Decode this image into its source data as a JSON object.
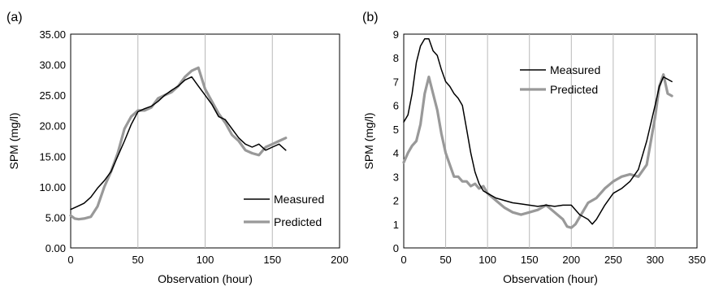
{
  "chart_data": [
    {
      "panel_label": "(a)",
      "type": "line",
      "xlabel": "Observation (hour)",
      "ylabel": "SPM (mg/l)",
      "xlim": [
        0,
        200
      ],
      "ylim": [
        0,
        35
      ],
      "x_ticks": [
        "0",
        "50",
        "100",
        "150",
        "200"
      ],
      "y_ticks": [
        "0.00",
        "5.00",
        "10.00",
        "15.00",
        "20.00",
        "25.00",
        "30.00",
        "35.00"
      ],
      "grid": "vertical",
      "legend_position": "bottom-right",
      "series": [
        {
          "name": "Measured",
          "color": "#000000",
          "x": [
            0,
            5,
            10,
            15,
            20,
            25,
            30,
            35,
            40,
            45,
            50,
            55,
            60,
            65,
            70,
            75,
            80,
            85,
            90,
            95,
            100,
            105,
            110,
            115,
            120,
            125,
            130,
            135,
            140,
            145,
            150,
            155,
            160
          ],
          "y": [
            6.3,
            6.8,
            7.3,
            8.3,
            9.8,
            11.0,
            12.5,
            15.0,
            17.5,
            20.2,
            22.3,
            22.8,
            23.2,
            24.0,
            25.0,
            25.8,
            26.5,
            27.5,
            28.0,
            26.5,
            25.0,
            23.5,
            21.5,
            21.0,
            19.5,
            18.0,
            17.0,
            16.5,
            17.0,
            16.0,
            16.5,
            17.0,
            16.0
          ]
        },
        {
          "name": "Predicted",
          "color": "#999999",
          "x": [
            0,
            3,
            6,
            10,
            15,
            20,
            25,
            30,
            35,
            40,
            45,
            50,
            55,
            60,
            65,
            70,
            75,
            80,
            85,
            90,
            95,
            100,
            105,
            110,
            115,
            120,
            125,
            130,
            135,
            140,
            145,
            150,
            155,
            160
          ],
          "y": [
            5.3,
            4.8,
            4.7,
            4.8,
            5.1,
            6.8,
            10.0,
            12.5,
            15.5,
            19.5,
            21.5,
            22.5,
            22.5,
            23.0,
            24.5,
            25.0,
            25.5,
            26.5,
            28.0,
            29.0,
            29.5,
            26.0,
            24.0,
            22.0,
            20.5,
            18.5,
            17.5,
            16.0,
            15.5,
            15.2,
            16.5,
            17.0,
            17.5,
            18.0
          ]
        }
      ]
    },
    {
      "panel_label": "(b)",
      "type": "line",
      "xlabel": "Observation (hour)",
      "ylabel": "SPM (mg/l)",
      "xlim": [
        0,
        350
      ],
      "ylim": [
        0,
        9
      ],
      "x_ticks": [
        "0",
        "50",
        "100",
        "150",
        "200",
        "250",
        "300",
        "350"
      ],
      "y_ticks": [
        "0",
        "1",
        "2",
        "3",
        "4",
        "5",
        "6",
        "7",
        "8",
        "9"
      ],
      "grid": "vertical",
      "legend_position": "top-center",
      "series": [
        {
          "name": "Measured",
          "color": "#000000",
          "x": [
            0,
            5,
            10,
            15,
            20,
            25,
            30,
            35,
            40,
            45,
            50,
            55,
            60,
            65,
            70,
            75,
            80,
            85,
            90,
            95,
            100,
            110,
            120,
            130,
            140,
            150,
            160,
            170,
            180,
            190,
            200,
            205,
            210,
            215,
            220,
            225,
            230,
            240,
            250,
            260,
            270,
            280,
            290,
            300,
            305,
            310,
            315,
            320
          ],
          "y": [
            5.3,
            5.6,
            6.5,
            7.8,
            8.5,
            8.8,
            8.8,
            8.3,
            8.1,
            7.5,
            7.0,
            6.8,
            6.5,
            6.3,
            6.0,
            5.0,
            4.0,
            3.2,
            2.7,
            2.4,
            2.3,
            2.1,
            2.0,
            1.9,
            1.85,
            1.8,
            1.75,
            1.8,
            1.75,
            1.8,
            1.8,
            1.6,
            1.4,
            1.3,
            1.2,
            1.0,
            1.2,
            1.8,
            2.3,
            2.5,
            2.8,
            3.3,
            4.5,
            6.0,
            6.8,
            7.2,
            7.1,
            7.0
          ]
        },
        {
          "name": "Predicted",
          "color": "#999999",
          "x": [
            0,
            5,
            10,
            15,
            20,
            25,
            30,
            35,
            40,
            45,
            50,
            55,
            60,
            65,
            70,
            75,
            80,
            85,
            90,
            95,
            100,
            110,
            120,
            130,
            140,
            150,
            160,
            170,
            180,
            190,
            195,
            200,
            205,
            210,
            215,
            220,
            230,
            240,
            250,
            260,
            270,
            280,
            290,
            300,
            305,
            310,
            315,
            320
          ],
          "y": [
            3.6,
            4.0,
            4.3,
            4.5,
            5.2,
            6.5,
            7.2,
            6.5,
            5.8,
            4.8,
            4.0,
            3.5,
            3.0,
            3.0,
            2.8,
            2.8,
            2.6,
            2.7,
            2.5,
            2.6,
            2.3,
            2.0,
            1.7,
            1.5,
            1.4,
            1.5,
            1.6,
            1.8,
            1.5,
            1.2,
            0.9,
            0.85,
            1.0,
            1.3,
            1.6,
            1.9,
            2.1,
            2.5,
            2.8,
            3.0,
            3.1,
            3.0,
            3.5,
            5.5,
            6.8,
            7.3,
            6.5,
            6.4
          ]
        }
      ]
    }
  ]
}
